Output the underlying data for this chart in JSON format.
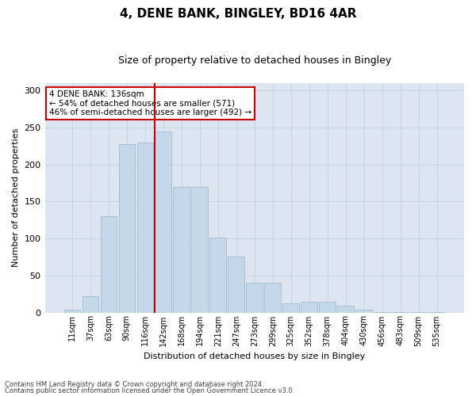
{
  "title1": "4, DENE BANK, BINGLEY, BD16 4AR",
  "title2": "Size of property relative to detached houses in Bingley",
  "xlabel": "Distribution of detached houses by size in Bingley",
  "ylabel": "Number of detached properties",
  "bar_labels": [
    "11sqm",
    "37sqm",
    "63sqm",
    "90sqm",
    "116sqm",
    "142sqm",
    "168sqm",
    "194sqm",
    "221sqm",
    "247sqm",
    "273sqm",
    "299sqm",
    "325sqm",
    "352sqm",
    "378sqm",
    "404sqm",
    "430sqm",
    "456sqm",
    "483sqm",
    "509sqm",
    "535sqm"
  ],
  "bar_values": [
    4,
    22,
    130,
    228,
    230,
    245,
    170,
    170,
    101,
    75,
    40,
    40,
    12,
    15,
    15,
    9,
    4,
    1,
    1,
    1,
    1
  ],
  "bar_color": "#c5d8ea",
  "bar_edgecolor": "#9ab5cc",
  "vline_color": "#cc0000",
  "annotation_text": "4 DENE BANK: 136sqm\n← 54% of detached houses are smaller (571)\n46% of semi-detached houses are larger (492) →",
  "annotation_box_facecolor": "#ffffff",
  "annotation_box_edgecolor": "#cc0000",
  "grid_color": "#c8d4e4",
  "background_color": "#dde6f0",
  "footer1": "Contains HM Land Registry data © Crown copyright and database right 2024.",
  "footer2": "Contains public sector information licensed under the Open Government Licence v3.0.",
  "ylim": [
    0,
    310
  ],
  "yticks": [
    0,
    50,
    100,
    150,
    200,
    250,
    300
  ],
  "title1_fontsize": 11,
  "title2_fontsize": 9,
  "ylabel_fontsize": 8,
  "xlabel_fontsize": 8
}
